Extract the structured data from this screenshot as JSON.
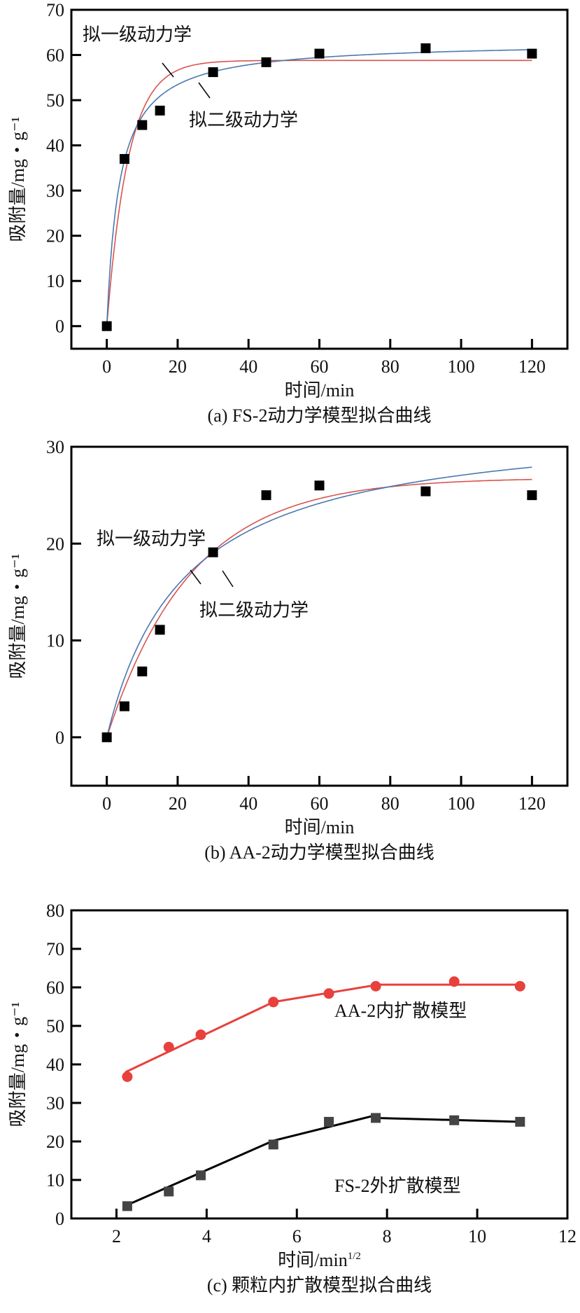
{
  "chart_data": [
    {
      "type": "scatter",
      "title": "(a) FS-2动力学模型拟合曲线",
      "xlabel": "时间/min",
      "ylabel": "吸附量/mg・g⁻¹",
      "xlim": [
        -10,
        130
      ],
      "ylim": [
        -5,
        70
      ],
      "xticks": [
        0,
        20,
        40,
        60,
        80,
        100,
        120
      ],
      "yticks": [
        0,
        10,
        20,
        30,
        40,
        50,
        60,
        70
      ],
      "points": {
        "name": "实验数据",
        "x": [
          0,
          5,
          10,
          15,
          30,
          45,
          60,
          90,
          120
        ],
        "y": [
          0,
          37,
          44.5,
          47.7,
          56.2,
          58.4,
          60.3,
          61.5,
          60.3
        ],
        "color": "#000000"
      },
      "curves": [
        {
          "name": "拟一级动力学",
          "model": "pfo",
          "qe": 58.8,
          "k": 0.165,
          "color": "#d9534f"
        },
        {
          "name": "拟二级动力学",
          "model": "pso",
          "qe": 63,
          "k": 0.00444,
          "color": "#4a78b0"
        }
      ],
      "annotations": [
        "拟一级动力学",
        "拟二级动力学"
      ]
    },
    {
      "type": "scatter",
      "title": "(b) AA-2动力学模型拟合曲线",
      "xlabel": "时间/min",
      "ylabel": "吸附量/mg・g⁻¹",
      "xlim": [
        -10,
        130
      ],
      "ylim": [
        -5,
        30
      ],
      "xticks": [
        0,
        20,
        40,
        60,
        80,
        100,
        120
      ],
      "yticks": [
        0,
        10,
        20,
        30
      ],
      "points": {
        "name": "实验数据",
        "x": [
          0,
          5,
          10,
          15,
          30,
          45,
          60,
          90,
          120
        ],
        "y": [
          0,
          3.2,
          6.8,
          11.1,
          19.1,
          25,
          26,
          25.4,
          25
        ],
        "color": "#000000"
      },
      "curves": [
        {
          "name": "拟一级动力学",
          "model": "pfo",
          "qe": 26.8,
          "k": 0.042,
          "color": "#d9534f"
        },
        {
          "name": "拟二级动力学",
          "model": "pso",
          "qe": 33,
          "k": 0.00138,
          "color": "#4a78b0"
        }
      ],
      "annotations": [
        "拟一级动力学",
        "拟二级动力学"
      ]
    },
    {
      "type": "line",
      "title": "(c) 颗粒内扩散模型拟合曲线",
      "xlabel": "时间/min",
      "xlabel_sup": "1/2",
      "ylabel": "吸附量/mg・g⁻¹",
      "xlim": [
        1,
        12
      ],
      "ylim": [
        0,
        80
      ],
      "xticks": [
        2,
        4,
        6,
        8,
        10,
        12
      ],
      "yticks": [
        0,
        10,
        20,
        30,
        40,
        50,
        60,
        70,
        80
      ],
      "series": [
        {
          "name": "AA-2内扩散模型",
          "marker": "circle",
          "color": "#e8403c",
          "x": [
            2.24,
            3.16,
            3.87,
            5.48,
            6.71,
            7.75,
            9.49,
            10.95
          ],
          "y": [
            36.8,
            44.5,
            47.7,
            56.2,
            58.4,
            60.3,
            61.5,
            60.3
          ],
          "fit_segments": [
            [
              [
                2.2,
                38
              ],
              [
                5.48,
                56.2
              ]
            ],
            [
              [
                5.48,
                56.2
              ],
              [
                7.75,
                60.6
              ]
            ],
            [
              [
                7.75,
                60.7
              ],
              [
                10.95,
                60.7
              ]
            ]
          ]
        },
        {
          "name": "FS-2外扩散模型",
          "marker": "square",
          "color": "#444444",
          "line_color": "#000000",
          "x": [
            2.24,
            3.16,
            3.87,
            5.48,
            6.71,
            7.75,
            9.49,
            10.95
          ],
          "y": [
            3.2,
            7,
            11.2,
            19.2,
            25.1,
            26.1,
            25.5,
            25.1
          ],
          "fit_segments": [
            [
              [
                2.24,
                3.5
              ],
              [
                5.48,
                20.2
              ]
            ],
            [
              [
                5.48,
                20.2
              ],
              [
                7.75,
                26.8
              ]
            ],
            [
              [
                7.75,
                26.1
              ],
              [
                10.95,
                25.1
              ]
            ]
          ]
        }
      ]
    }
  ]
}
